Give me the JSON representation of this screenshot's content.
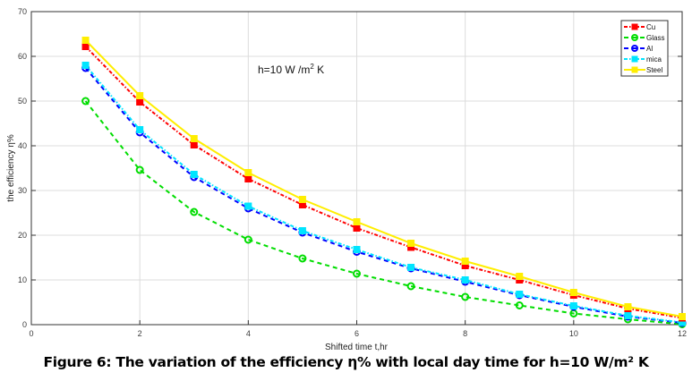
{
  "chart_data": {
    "type": "line",
    "title": "",
    "annotation": "h=10 W /m² K",
    "xlabel": "Shifted time t,hr",
    "ylabel": "the efficiency η%",
    "xlim": [
      0,
      12
    ],
    "ylim": [
      0,
      70
    ],
    "xticks": [
      0,
      2,
      4,
      6,
      8,
      10,
      12
    ],
    "yticks": [
      0,
      10,
      20,
      30,
      40,
      50,
      60,
      70
    ],
    "grid": true,
    "legend_position": "top-right",
    "x": [
      1,
      2,
      3,
      4,
      5,
      6,
      7,
      8,
      9,
      10,
      11,
      12
    ],
    "series": [
      {
        "name": "Cu",
        "color": "#ff0000",
        "marker": "square",
        "line": "dash-dot",
        "values": [
          62.2,
          49.8,
          40.2,
          32.6,
          26.8,
          21.6,
          17.3,
          13.2,
          10.0,
          6.6,
          3.6,
          1.5
        ]
      },
      {
        "name": "Glass",
        "color": "#00dd00",
        "marker": "circle",
        "line": "dashed",
        "values": [
          50.0,
          34.6,
          25.2,
          19.0,
          14.8,
          11.4,
          8.6,
          6.2,
          4.3,
          2.5,
          1.2,
          0.1
        ]
      },
      {
        "name": "Al",
        "color": "#0000ff",
        "marker": "circle",
        "line": "dashed",
        "values": [
          57.4,
          43.0,
          33.0,
          26.0,
          20.6,
          16.3,
          12.6,
          9.6,
          6.6,
          4.0,
          1.8,
          0.4
        ]
      },
      {
        "name": "mica",
        "color": "#00e5ff",
        "marker": "square",
        "line": "dash-dot",
        "values": [
          58.0,
          43.6,
          33.6,
          26.5,
          21.0,
          16.8,
          12.8,
          10.0,
          6.8,
          4.2,
          2.0,
          0.5
        ]
      },
      {
        "name": "Steel",
        "color": "#ffee00",
        "marker": "square",
        "line": "solid",
        "values": [
          63.6,
          51.2,
          41.6,
          34.0,
          28.0,
          23.0,
          18.2,
          14.2,
          10.8,
          7.2,
          4.0,
          1.8
        ]
      }
    ]
  },
  "caption": "Figure 6: The variation of the efficiency η% with local day time for h=10 W/m² K"
}
